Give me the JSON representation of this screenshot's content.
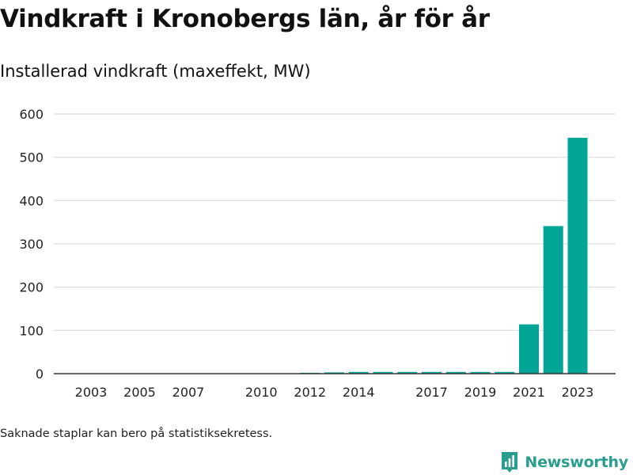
{
  "header": {
    "title": "Vindkraft i Kronobergs län, år för år",
    "subtitle": "Installerad vindkraft (maxeffekt, MW)"
  },
  "footer": {
    "note": "Saknade staplar kan bero på statistiksekretess.",
    "brand": "Newsworthy"
  },
  "colors": {
    "bar": "#00a596",
    "brand": "#2a9d8f",
    "grid": "#dddddd",
    "axis": "#333333"
  },
  "chart_data": {
    "type": "bar",
    "xlabel": "",
    "ylabel": "",
    "ylim": [
      0,
      600
    ],
    "yticks": [
      0,
      100,
      200,
      300,
      400,
      500,
      600
    ],
    "xticks": [
      2003,
      2005,
      2007,
      2010,
      2012,
      2014,
      2017,
      2019,
      2021,
      2023
    ],
    "grid": true,
    "categories": [
      2012,
      2013,
      2014,
      2015,
      2016,
      2017,
      2018,
      2019,
      2020,
      2021,
      2022,
      2023
    ],
    "values": [
      2,
      3,
      4,
      4,
      4,
      4,
      4,
      4,
      4,
      114,
      341,
      545
    ]
  }
}
